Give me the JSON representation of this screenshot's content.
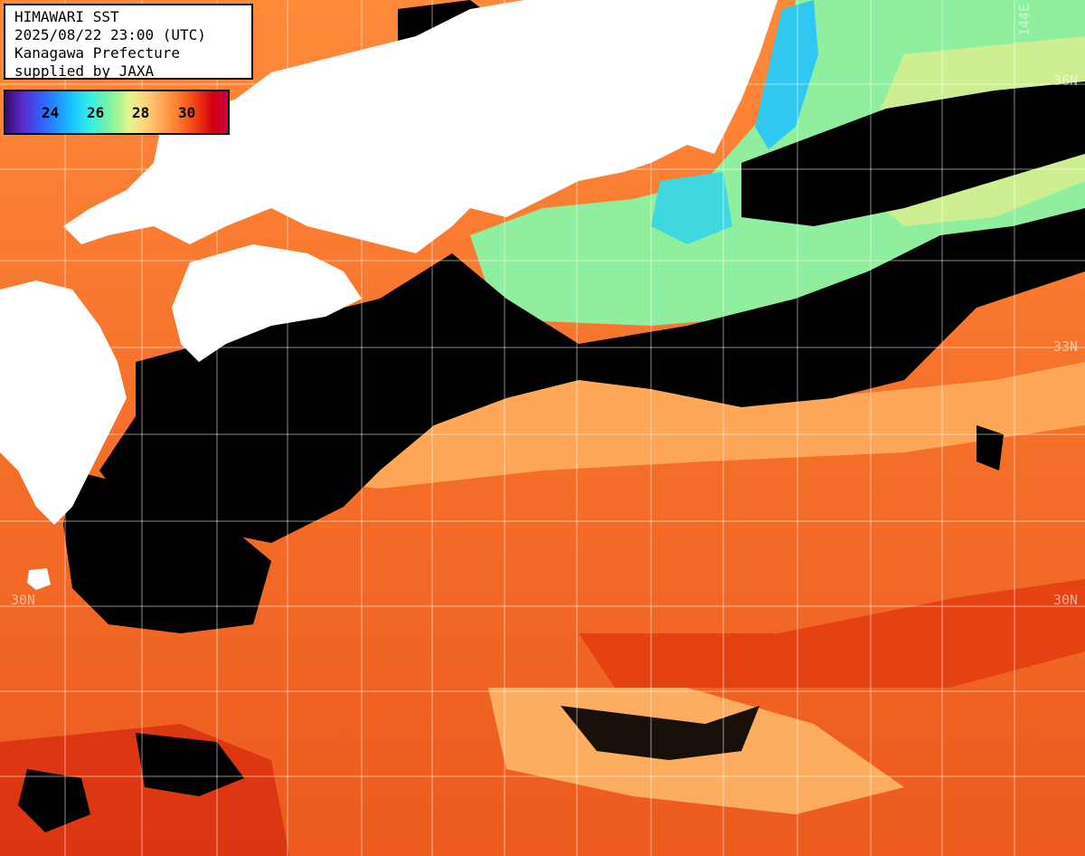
{
  "info": {
    "line1": "HIMAWARI SST",
    "line2": "2025/08/22 23:00 (UTC)",
    "line3": "Kanagawa Prefecture",
    "line4": "supplied by JAXA"
  },
  "legend": {
    "labels": [
      "24",
      "26",
      "28",
      "30"
    ]
  },
  "grid_labels": {
    "lat_36": "36N",
    "lat_33_right": "33N",
    "lat_30_left": "30N",
    "lat_30_right": "30N",
    "lon_144": "144E"
  },
  "colors": {
    "land": "#ffffff",
    "cloud": "#000000",
    "sst_warm": "#f2661f",
    "sst_hot": "#e23a10",
    "sst_mild": "#ffb060",
    "sst_cool": "#8ff0a0",
    "sst_cold": "#40e0f0",
    "grid": "#ffffff"
  }
}
